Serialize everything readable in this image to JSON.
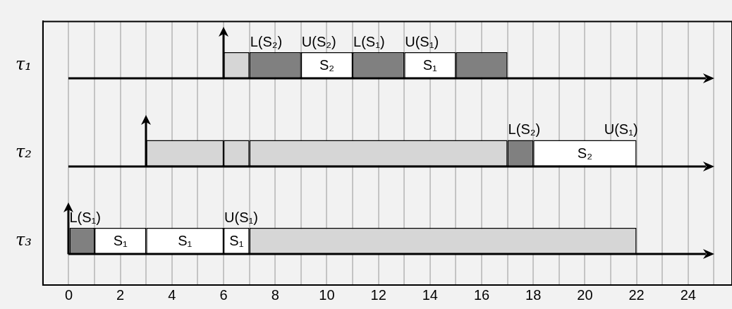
{
  "chart_data": {
    "type": "bar",
    "orientation": "horizontal",
    "categories": [
      "τ₁",
      "τ₂",
      "τ₃"
    ],
    "series": [
      {
        "color": "#808080",
        "values": [
          2,
          1,
          1
        ],
        "base": [
          7,
          17,
          0
        ]
      },
      {
        "color": "#808080",
        "values": [
          2,
          null,
          null
        ],
        "base": [
          11,
          null,
          null
        ]
      },
      {
        "color": "#808080",
        "values": [
          2,
          null,
          null
        ],
        "base": [
          15,
          null,
          null
        ]
      },
      {
        "color": "#ffffff",
        "values": [
          2,
          4,
          2
        ],
        "base": [
          9,
          18,
          1
        ],
        "value_labels": [
          "S₂",
          "S₂",
          "S₁"
        ]
      },
      {
        "color": "#ffffff",
        "values": [
          2,
          null,
          3
        ],
        "base": [
          13,
          null,
          3
        ],
        "value_labels": [
          "S₁",
          null,
          "S₁"
        ]
      },
      {
        "color": "#ffffff",
        "values": [
          null,
          null,
          1
        ],
        "base": [
          null,
          null,
          6
        ],
        "value_labels": [
          null,
          null,
          "S₁"
        ]
      },
      {
        "color": "#d6d6d6",
        "values": [
          1,
          3,
          15
        ],
        "base": [
          6,
          3,
          7
        ]
      },
      {
        "color": "#d6d6d6",
        "values": [
          null,
          1,
          null
        ],
        "base": [
          null,
          6,
          null
        ]
      },
      {
        "color": "#d6d6d6",
        "values": [
          null,
          10,
          null
        ],
        "base": [
          null,
          7,
          null
        ]
      }
    ],
    "xlim": [
      -1,
      25.7
    ],
    "xticks": [
      0,
      {
        "value": 1,
        "label": null
      },
      2,
      {
        "value": 3,
        "label": null
      },
      4,
      {
        "value": 5,
        "label": null
      },
      6,
      {
        "value": 7,
        "label": null
      },
      8,
      {
        "value": 9,
        "label": null
      },
      10,
      {
        "value": 11,
        "label": null
      },
      12,
      {
        "value": 13,
        "label": null
      },
      14,
      {
        "value": 15,
        "label": null
      },
      16,
      {
        "value": 17,
        "label": null
      },
      18,
      {
        "value": 19,
        "label": null
      },
      20,
      {
        "value": 21,
        "label": null
      },
      22,
      {
        "value": 23,
        "label": null
      },
      24,
      {
        "value": 25,
        "label": null
      }
    ],
    "annotations": [
      {
        "text": "L(S₂)",
        "x": 7,
        "y": "τ₁"
      },
      {
        "text": "U(S₂)",
        "x": 9,
        "y": "τ₁"
      },
      {
        "text": "L(S₁)",
        "x": 11,
        "y": "τ₁"
      },
      {
        "text": "U(S₁)",
        "x": 13,
        "y": "τ₁"
      },
      {
        "text": "L(S₂)",
        "x": 17,
        "y": "τ₂"
      },
      {
        "text": "U(S₁)",
        "x": 22,
        "y": "τ₂"
      },
      {
        "text": "L(S₁)",
        "x": 0,
        "y": "τ₃"
      },
      {
        "text": "U(S₁)",
        "x": 6,
        "y": "τ₃"
      }
    ],
    "grid": "x"
  }
}
